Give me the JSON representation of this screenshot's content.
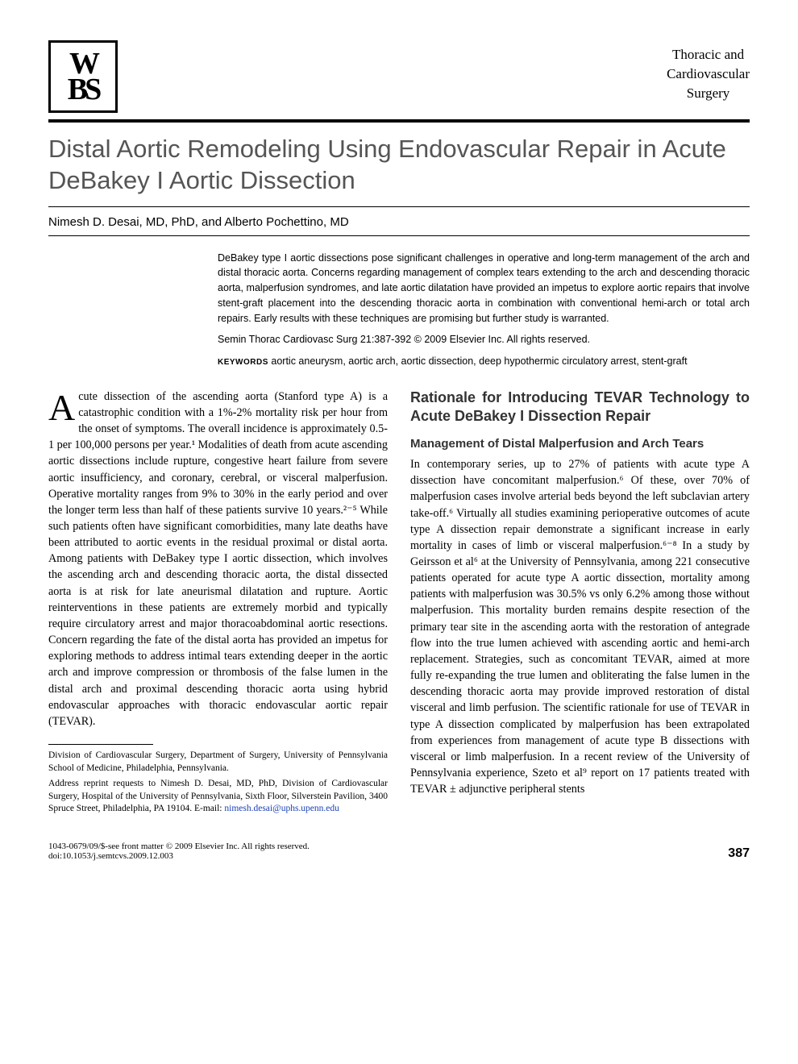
{
  "header": {
    "logo": "WBS",
    "journal_section_line1": "Thoracic and",
    "journal_section_line2": "Cardiovascular",
    "journal_section_line3": "Surgery"
  },
  "article": {
    "title": "Distal Aortic Remodeling Using Endovascular Repair in Acute DeBakey I Aortic Dissection",
    "authors": "Nimesh D. Desai, MD, PhD, and Alberto Pochettino, MD"
  },
  "abstract": {
    "text": "DeBakey type I aortic dissections pose significant challenges in operative and long-term management of the arch and distal thoracic aorta. Concerns regarding management of complex tears extending to the arch and descending thoracic aorta, malperfusion syndromes, and late aortic dilatation have provided an impetus to explore aortic repairs that involve stent-graft placement into the descending thoracic aorta in combination with conventional hemi-arch or total arch repairs. Early results with these techniques are promising but further study is warranted.",
    "citation": "Semin Thorac Cardiovasc Surg 21:387-392 © 2009 Elsevier Inc. All rights reserved.",
    "keywords_label": "KEYWORDS",
    "keywords": "aortic aneurysm, aortic arch, aortic dissection, deep hypothermic circulatory arrest, stent-graft"
  },
  "body": {
    "col1_dropcap": "A",
    "col1_text": "cute dissection of the ascending aorta (Stanford type A) is a catastrophic condition with a 1%-2% mortality risk per hour from the onset of symptoms. The overall incidence is approximately 0.5-1 per 100,000 persons per year.¹ Modalities of death from acute ascending aortic dissections include rupture, congestive heart failure from severe aortic insufficiency, and coronary, cerebral, or visceral malperfusion. Operative mortality ranges from 9% to 30% in the early period and over the longer term less than half of these patients survive 10 years.²⁻⁵ While such patients often have significant comorbidities, many late deaths have been attributed to aortic events in the residual proximal or distal aorta. Among patients with DeBakey type I aortic dissection, which involves the ascending arch and descending thoracic aorta, the distal dissected aorta is at risk for late aneurismal dilatation and rupture. Aortic reinterventions in these patients are extremely morbid and typically require circulatory arrest and major thoracoabdominal aortic resections. Concern regarding the fate of the distal aorta has provided an impetus for exploring methods to address intimal tears extending deeper in the aortic arch and improve compression or thrombosis of the false lumen in the distal arch and proximal descending thoracic aorta using hybrid endovascular approaches with thoracic endovascular aortic repair (TEVAR).",
    "col2_heading": "Rationale for Introducing TEVAR Technology to Acute DeBakey I Dissection Repair",
    "col2_subheading": "Management of Distal Malperfusion and Arch Tears",
    "col2_text": "In contemporary series, up to 27% of patients with acute type A dissection have concomitant malperfusion.⁶ Of these, over 70% of malperfusion cases involve arterial beds beyond the left subclavian artery take-off.⁶ Virtually all studies examining perioperative outcomes of acute type A dissection repair demonstrate a significant increase in early mortality in cases of limb or visceral malperfusion.⁶⁻⁸ In a study by Geirsson et al⁶ at the University of Pennsylvania, among 221 consecutive patients operated for acute type A aortic dissection, mortality among patients with malperfusion was 30.5% vs only 6.2% among those without malperfusion. This mortality burden remains despite resection of the primary tear site in the ascending aorta with the restoration of antegrade flow into the true lumen achieved with ascending aortic and hemi-arch replacement. Strategies, such as concomitant TEVAR, aimed at more fully re-expanding the true lumen and obliterating the false lumen in the descending thoracic aorta may provide improved restoration of distal visceral and limb perfusion. The scientific rationale for use of TEVAR in type A dissection complicated by malperfusion has been extrapolated from experiences from management of acute type B dissections with visceral or limb malperfusion. In a recent review of the University of Pennsylvania experience, Szeto et al⁹ report on 17 patients treated with TEVAR ± adjunctive peripheral stents"
  },
  "affiliations": {
    "affil": "Division of Cardiovascular Surgery, Department of Surgery, University of Pennsylvania School of Medicine, Philadelphia, Pennsylvania.",
    "reprint": "Address reprint requests to Nimesh D. Desai, MD, PhD, Division of Cardiovascular Surgery, Hospital of the University of Pennsylvania, Sixth Floor, Silverstein Pavilion, 3400 Spruce Street, Philadelphia, PA 19104. E-mail: ",
    "email": "nimesh.desai@uphs.upenn.edu"
  },
  "footer": {
    "copyright": "1043-0679/09/$-see front matter © 2009 Elsevier Inc. All rights reserved.",
    "doi": "doi:10.1053/j.semtcvs.2009.12.003",
    "page": "387"
  },
  "colors": {
    "title_gray": "#555555",
    "email_blue": "#1a3fb5",
    "text": "#000000",
    "bg": "#ffffff"
  }
}
